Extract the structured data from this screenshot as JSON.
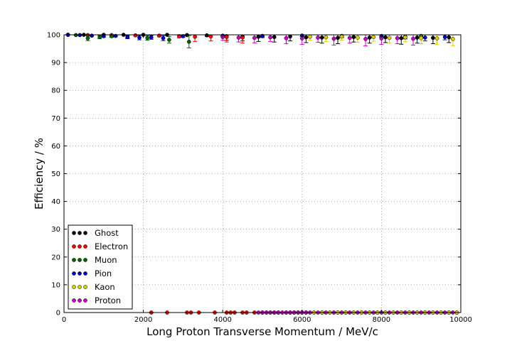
{
  "chart_data": {
    "type": "scatter",
    "title": "",
    "xlabel": "Long Proton Transverse Momentum / MeV/c",
    "ylabel": "Efficiency / %",
    "xlim": [
      0,
      10000
    ],
    "ylim": [
      0,
      100
    ],
    "x_ticks": [
      "0",
      "2000",
      "4000",
      "6000",
      "8000",
      "10000"
    ],
    "y_ticks": [
      "0",
      "10",
      "20",
      "30",
      "40",
      "50",
      "60",
      "70",
      "80",
      "90",
      "100"
    ],
    "grid": true,
    "legend_position": "lower-left",
    "series": [
      {
        "name": "Ghost",
        "color": "#000000",
        "points": [
          [
            100,
            100
          ],
          [
            500,
            100
          ],
          [
            1000,
            100
          ],
          [
            1500,
            100
          ],
          [
            2000,
            100
          ],
          [
            2600,
            100
          ],
          [
            3100,
            99.9
          ],
          [
            3600,
            99.8
          ],
          [
            4100,
            99.5
          ],
          [
            4500,
            99.4
          ],
          [
            4900,
            99.3
          ],
          [
            5300,
            99.2
          ],
          [
            5700,
            99.4
          ],
          [
            6100,
            99.1
          ],
          [
            6500,
            99.0
          ],
          [
            6900,
            98.9
          ],
          [
            7300,
            99.2
          ],
          [
            7700,
            99.0
          ],
          [
            8100,
            99.1
          ],
          [
            8500,
            98.8
          ],
          [
            8900,
            99.0
          ],
          [
            9300,
            98.9
          ],
          [
            9700,
            99.1
          ]
        ],
        "errors": [
          0,
          0,
          0,
          0,
          0,
          0,
          0.2,
          0.4,
          1.5,
          1.6,
          1.7,
          1.8,
          1.6,
          1.9,
          2.0,
          2.1,
          1.8,
          2.0,
          1.9,
          2.2,
          2.0,
          2.1,
          1.9
        ]
      },
      {
        "name": "Electron",
        "color": "#ff0000",
        "points": [
          [
            100,
            100
          ],
          [
            600,
            99.9
          ],
          [
            1200,
            99.9
          ],
          [
            1800,
            99.8
          ],
          [
            2400,
            99.7
          ],
          [
            2900,
            99.5
          ],
          [
            3300,
            99.3
          ],
          [
            3700,
            99.4
          ],
          [
            4100,
            99.2
          ],
          [
            4500,
            99.0
          ]
        ],
        "errors": [
          0,
          0.1,
          0.2,
          0.3,
          0.4,
          0.6,
          1.7,
          1.6,
          1.8,
          2.0
        ],
        "zero_points_x": [
          2200,
          2600,
          3100,
          3200,
          3400,
          3800,
          4100,
          4200,
          4300,
          4500,
          4600,
          4800,
          5000,
          5100,
          5200,
          5300,
          5400,
          5600,
          5700,
          5800,
          5900,
          6000,
          6100,
          6300,
          6500,
          6700,
          6900,
          7100,
          7300,
          7500,
          7700,
          7900,
          8100,
          8300,
          8500,
          8700,
          8900,
          9100,
          9300,
          9500,
          9700,
          9900
        ]
      },
      {
        "name": "Muon",
        "color": "#006400",
        "points": [
          [
            100,
            100
          ],
          [
            300,
            99.9
          ],
          [
            600,
            98.8
          ],
          [
            900,
            99.2
          ],
          [
            1200,
            99.5
          ],
          [
            1600,
            99.3
          ],
          [
            2100,
            98.9
          ],
          [
            2650,
            98.2
          ],
          [
            3150,
            97.5
          ],
          [
            4000,
            99.6
          ],
          [
            5000,
            99.5
          ],
          [
            6000,
            99.7
          ],
          [
            7000,
            99.6
          ],
          [
            8000,
            99.5
          ],
          [
            9000,
            99.6
          ]
        ],
        "errors": [
          0,
          0.1,
          0.9,
          0.6,
          0.4,
          0.5,
          0.8,
          1.2,
          2.2,
          0.4,
          0.5,
          0.3,
          0.4,
          0.5,
          0.4
        ]
      },
      {
        "name": "Pion",
        "color": "#0000cc",
        "points": [
          [
            100,
            100
          ],
          [
            400,
            99.9
          ],
          [
            700,
            99.7
          ],
          [
            1000,
            99.5
          ],
          [
            1300,
            99.6
          ],
          [
            1600,
            99.2
          ],
          [
            1900,
            99.0
          ],
          [
            2200,
            99.1
          ],
          [
            2500,
            98.8
          ],
          [
            3000,
            99.5
          ],
          [
            4000,
            99.7
          ],
          [
            5000,
            99.6
          ],
          [
            6000,
            99.7
          ],
          [
            7000,
            99.5
          ],
          [
            8000,
            99.6
          ],
          [
            8600,
            99.3
          ],
          [
            9100,
            99.0
          ],
          [
            9600,
            99.2
          ]
        ],
        "errors": [
          0,
          0.1,
          0.2,
          0.4,
          0.3,
          0.6,
          0.8,
          0.7,
          0.9,
          0.4,
          0.3,
          0.4,
          0.3,
          0.5,
          0.4,
          0.8,
          1.2,
          1.0
        ]
      },
      {
        "name": "Kaon",
        "color": "#ddcc00",
        "points": [
          [
            6200,
            99.3
          ],
          [
            6600,
            99.1
          ],
          [
            7000,
            99.4
          ],
          [
            7400,
            99.0
          ],
          [
            7800,
            99.2
          ],
          [
            8200,
            98.9
          ],
          [
            8600,
            99.1
          ],
          [
            9000,
            98.8
          ],
          [
            9400,
            98.7
          ],
          [
            9800,
            98.5
          ]
        ],
        "errors": [
          1.2,
          1.5,
          1.3,
          1.7,
          1.5,
          1.9,
          1.6,
          2.0,
          2.2,
          2.4
        ],
        "zero_points_x": [
          6300,
          6500,
          6700,
          6900,
          7100,
          7300,
          7500,
          7700,
          7900,
          8100,
          8300,
          8500,
          8700,
          8900,
          9100,
          9300,
          9500,
          9700,
          9900
        ]
      },
      {
        "name": "Proton",
        "color": "#cc00cc",
        "points": [
          [
            4000,
            99.2
          ],
          [
            4400,
            99.0
          ],
          [
            4800,
            98.9
          ],
          [
            5200,
            99.1
          ],
          [
            5600,
            98.8
          ],
          [
            6000,
            98.7
          ],
          [
            6400,
            99.0
          ],
          [
            6800,
            98.6
          ],
          [
            7200,
            98.9
          ],
          [
            7600,
            98.5
          ],
          [
            8000,
            98.7
          ],
          [
            8400,
            98.8
          ],
          [
            8800,
            98.6
          ]
        ],
        "errors": [
          1.2,
          1.6,
          1.8,
          1.5,
          2.0,
          2.2,
          1.7,
          2.3,
          1.9,
          2.5,
          2.2,
          2.0,
          2.3
        ],
        "zero_points_x": [
          4900,
          5000,
          5100,
          5200,
          5300,
          5400,
          5500,
          5600,
          5700,
          5800,
          5900,
          6000,
          6100,
          6200,
          6400,
          6600,
          6800,
          7000,
          7200,
          7400,
          7600,
          7800,
          8000,
          8200,
          8400,
          8600,
          8800,
          9000,
          9200,
          9400,
          9600,
          9800
        ]
      }
    ]
  }
}
